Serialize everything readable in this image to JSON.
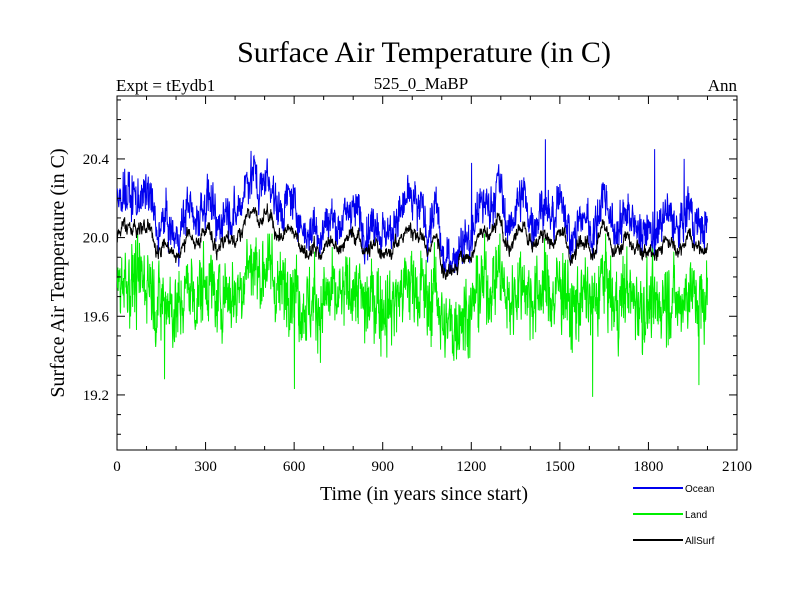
{
  "chart_data": {
    "type": "line",
    "title": "Surface Air Temperature (in C)",
    "subtitle_left": "Expt = tEydb1",
    "subtitle_center": "525_0_MaBP",
    "subtitle_right": "Ann",
    "xlabel": "Time (in years since start)",
    "ylabel": "Surface Air Temperature (in C)",
    "xlim": [
      0,
      2100
    ],
    "ylim": [
      18.92,
      20.72
    ],
    "x_ticks": [
      0,
      300,
      600,
      900,
      1200,
      1500,
      1800,
      2100
    ],
    "x_tick_labels": [
      "0",
      "300",
      "600",
      "900",
      "1200",
      "1500",
      "1800",
      "2100"
    ],
    "y_ticks": [
      19.2,
      19.6,
      20.0,
      20.4
    ],
    "y_tick_labels": [
      "19.2",
      "19.6",
      "20.0",
      "20.4"
    ],
    "grid": false,
    "legend_position": "bottom-right outside",
    "series": [
      {
        "name": "Ocean",
        "color": "#0000ee",
        "n_years": 2000,
        "mean": 20.12,
        "range": [
          19.82,
          20.5
        ],
        "peaks": [
          {
            "x": 1450,
            "y": 20.5
          },
          {
            "x": 25,
            "y": 20.35
          },
          {
            "x": 1820,
            "y": 20.45
          },
          {
            "x": 1200,
            "y": 20.38
          },
          {
            "x": 1920,
            "y": 20.4
          }
        ]
      },
      {
        "name": "Land",
        "color": "#00ee00",
        "n_years": 2000,
        "mean": 19.72,
        "range": [
          19.19,
          20.02
        ],
        "troughs": [
          {
            "x": 1610,
            "y": 19.19
          },
          {
            "x": 600,
            "y": 19.23
          },
          {
            "x": 1970,
            "y": 19.25
          },
          {
            "x": 160,
            "y": 19.28
          }
        ]
      },
      {
        "name": "AllSurf",
        "color": "#000000",
        "n_years": 2000,
        "mean": 19.99,
        "range": [
          19.78,
          20.19
        ]
      }
    ]
  },
  "legend": {
    "items": [
      {
        "label": "Ocean",
        "color": "#0000ee"
      },
      {
        "label": "Land",
        "color": "#00ee00"
      },
      {
        "label": "AllSurf",
        "color": "#000000"
      }
    ]
  }
}
